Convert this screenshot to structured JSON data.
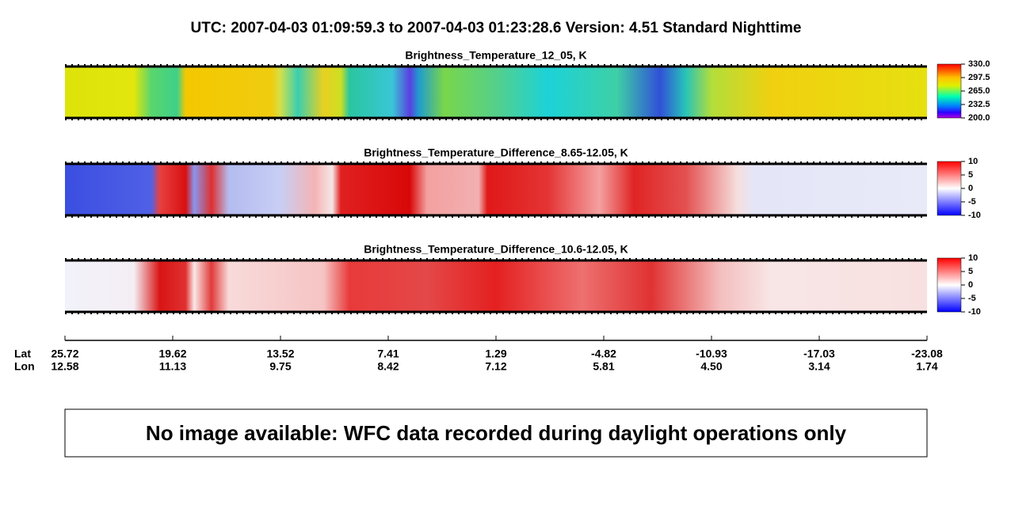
{
  "header": {
    "title": "UTC:  2007-04-03   01:09:59.3  to  2007-04-03   01:23:28.6    Version: 4.51  Standard Nighttime"
  },
  "panels": [
    {
      "title": "Brightness_Temperature_12_05, K",
      "colorbar_ticks": [
        "330.0",
        "297.5",
        "265.0",
        "232.5",
        "200.0"
      ]
    },
    {
      "title": "Brightness_Temperature_Difference_8.65-12.05, K",
      "colorbar_ticks": [
        "10",
        "5",
        "0",
        "-5",
        "-10"
      ]
    },
    {
      "title": "Brightness_Temperature_Difference_10.6-12.05, K",
      "colorbar_ticks": [
        "10",
        "5",
        "0",
        "-5",
        "-10"
      ]
    }
  ],
  "axis": {
    "lat_label": "Lat",
    "lon_label": "Lon",
    "lat": [
      "25.72",
      "19.62",
      "13.52",
      "7.41",
      "1.29",
      "-4.82",
      "-10.93",
      "-17.03",
      "-23.08"
    ],
    "lon": [
      "12.58",
      "11.13",
      "9.75",
      "8.42",
      "7.12",
      "5.81",
      "4.50",
      "3.14",
      "1.74"
    ]
  },
  "message": "No image available: WFC data recorded during daylight operations only"
}
